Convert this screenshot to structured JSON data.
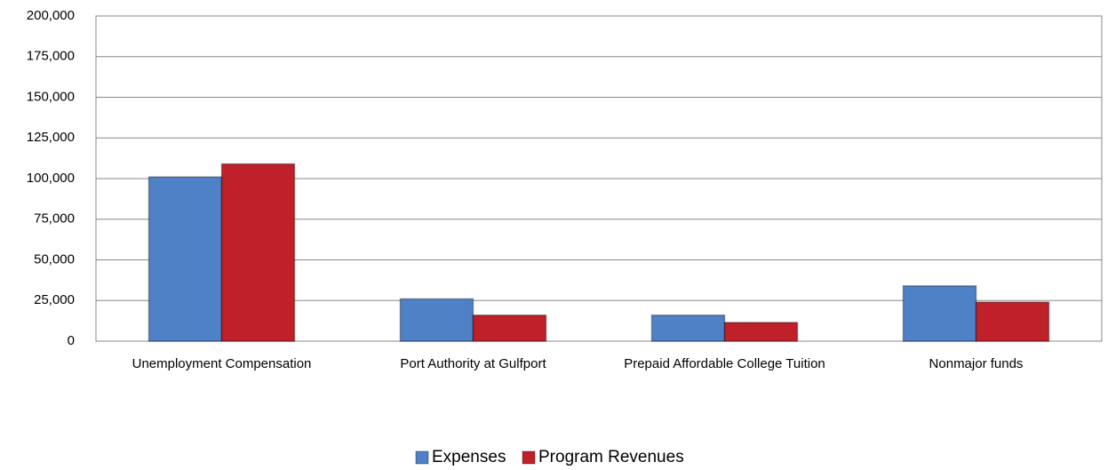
{
  "chart_data": {
    "type": "bar",
    "categories": [
      "Unemployment Compensation",
      "Port Authority at Gulfport",
      "Prepaid Affordable College Tuition",
      "Nonmajor funds"
    ],
    "series": [
      {
        "name": "Expenses",
        "color": "#4f81c7",
        "values": [
          101000,
          26000,
          16000,
          34000
        ]
      },
      {
        "name": "Program Revenues",
        "color": "#c0202a",
        "values": [
          109000,
          16000,
          11500,
          24000
        ]
      }
    ],
    "ylim": [
      0,
      200000
    ],
    "yticks": [
      0,
      {
        "value": 25000,
        "label": "25,000"
      },
      {
        "value": 50000,
        "label": "50,000"
      },
      {
        "value": 75000,
        "label": "75,000"
      },
      {
        "value": 100000,
        "label": "100,000"
      },
      {
        "value": 125000,
        "label": "125,000"
      },
      {
        "value": 150000,
        "label": "150,000"
      },
      {
        "value": 175000,
        "label": "175,000"
      },
      {
        "value": 200000,
        "label": "200,000"
      }
    ],
    "grid": true,
    "legend": "bottom"
  }
}
